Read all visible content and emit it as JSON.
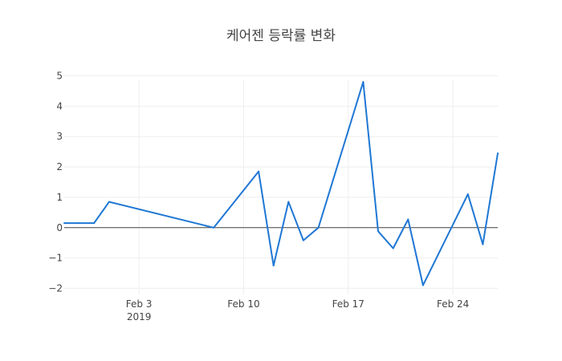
{
  "chart_data": {
    "type": "line",
    "title": "케어젠 등락률 변화",
    "xlabel": "",
    "ylabel": "",
    "x_range": [
      "2019-01-29",
      "2019-02-27"
    ],
    "ylim": [
      -2.2,
      5.2
    ],
    "grid": true,
    "zero_line": true,
    "line_color": "#1f77d4",
    "x_ticks": [
      {
        "date": "2019-02-03",
        "label": "Feb 3",
        "sublabel": "2019"
      },
      {
        "date": "2019-02-10",
        "label": "Feb 10",
        "sublabel": ""
      },
      {
        "date": "2019-02-17",
        "label": "Feb 17",
        "sublabel": ""
      },
      {
        "date": "2019-02-24",
        "label": "Feb 24",
        "sublabel": ""
      }
    ],
    "y_ticks": [
      {
        "value": 5,
        "label": "5"
      },
      {
        "value": 4,
        "label": "4"
      },
      {
        "value": 3,
        "label": "3"
      },
      {
        "value": 2,
        "label": "2"
      },
      {
        "value": 1,
        "label": "1"
      },
      {
        "value": 0,
        "label": "0"
      },
      {
        "value": -1,
        "label": "−1"
      },
      {
        "value": -2,
        "label": "−2"
      }
    ],
    "series": [
      {
        "x": [
          "2019-01-29",
          "2019-01-30",
          "2019-01-31",
          "2019-02-01",
          "2019-02-08",
          "2019-02-11",
          "2019-02-12",
          "2019-02-13",
          "2019-02-14",
          "2019-02-15",
          "2019-02-18",
          "2019-02-19",
          "2019-02-20",
          "2019-02-21",
          "2019-02-22",
          "2019-02-25",
          "2019-02-26",
          "2019-02-27"
        ],
        "y": [
          0.15,
          0.15,
          0.15,
          0.85,
          0.0,
          1.85,
          -1.25,
          0.85,
          -0.42,
          0.0,
          4.8,
          -0.12,
          -0.68,
          0.27,
          -1.9,
          1.1,
          -0.55,
          2.45
        ]
      }
    ]
  }
}
